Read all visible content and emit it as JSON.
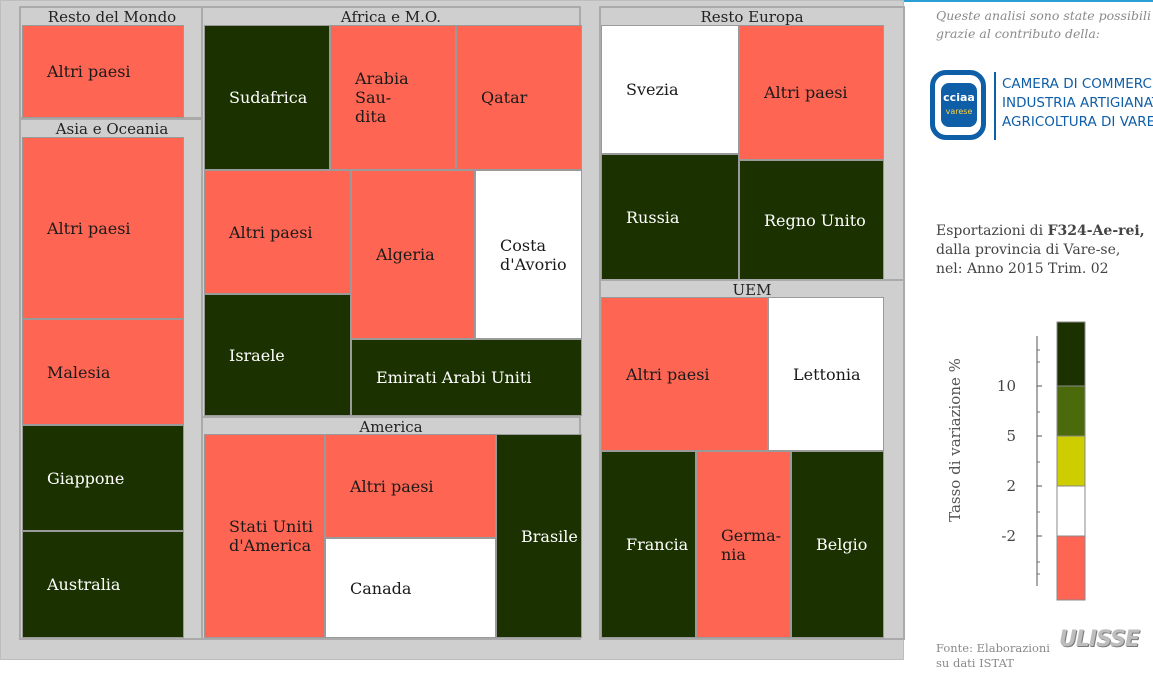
{
  "side_note": "Queste analisi sono state possibili grazie al contributo della:",
  "logo": {
    "mark_line1": "cciaa",
    "mark_line2": "varese",
    "line1": "CAMERA DI COMMERCIO",
    "line2": "INDUSTRIA ARTIGIANATO",
    "line3": "AGRICOLTURA DI VARESE"
  },
  "subtitle": {
    "prefix": "Esportazioni di ",
    "product": "F324-Ae-rei,",
    "middle": " dalla provincia di Vare-se,",
    "period": "nel: Anno 2015 Trim. 02"
  },
  "source": "Fonte: Elaborazioni su dati ISTAT",
  "brand": "ULISSE",
  "colors": {
    "dark_green": "#1b3200",
    "mid_green": "#4a6a0c",
    "yellow": "#cdcd00",
    "white": "#ffffff",
    "red": "#ff6553"
  },
  "chart_data": {
    "type": "treemap",
    "title": "",
    "legend": {
      "title": "Tasso di variazione %",
      "position": "right",
      "breaks": [
        "10",
        "5",
        "2",
        "-2"
      ],
      "bins": [
        {
          "range": "> 10",
          "color": "#1b3200"
        },
        {
          "range": "5 – 10",
          "color": "#4a6a0c"
        },
        {
          "range": "2 – 5",
          "color": "#cdcd00"
        },
        {
          "range": "-2 – 2",
          "color": "#ffffff"
        },
        {
          "range": "< -2",
          "color": "#ff6553"
        }
      ]
    },
    "groups": [
      {
        "name": "Resto del Mondo",
        "items": [
          {
            "name": "Altri paesi",
            "class": "< -2"
          }
        ]
      },
      {
        "name": "Asia e Oceania",
        "items": [
          {
            "name": "Altri paesi",
            "class": "< -2"
          },
          {
            "name": "Malesia",
            "class": "< -2"
          },
          {
            "name": "Giappone",
            "class": "> 10"
          },
          {
            "name": "Australia",
            "class": "> 10"
          }
        ]
      },
      {
        "name": "Africa e M.O.",
        "items": [
          {
            "name": "Sudafrica",
            "class": "> 10"
          },
          {
            "name": "Arabia Sau-dita",
            "class": "< -2"
          },
          {
            "name": "Qatar",
            "class": "< -2"
          },
          {
            "name": "Altri paesi",
            "class": "< -2"
          },
          {
            "name": "Algeria",
            "class": "< -2"
          },
          {
            "name": "Costa d'Avorio",
            "class": "-2 – 2"
          },
          {
            "name": "Israele",
            "class": "> 10"
          },
          {
            "name": "Emirati Arabi Uniti",
            "class": "> 10"
          }
        ]
      },
      {
        "name": "America",
        "items": [
          {
            "name": "Stati Uniti d'America",
            "class": "< -2"
          },
          {
            "name": "Altri paesi",
            "class": "< -2"
          },
          {
            "name": "Canada",
            "class": "-2 – 2"
          },
          {
            "name": "Brasile",
            "class": "> 10"
          }
        ]
      },
      {
        "name": "Resto Europa",
        "items": [
          {
            "name": "Svezia",
            "class": "-2 – 2"
          },
          {
            "name": "Altri paesi",
            "class": "< -2"
          },
          {
            "name": "Russia",
            "class": "> 10"
          },
          {
            "name": "Regno Unito",
            "class": "> 10"
          }
        ]
      },
      {
        "name": "UEM",
        "items": [
          {
            "name": "Altri paesi",
            "class": "< -2"
          },
          {
            "name": "Lettonia",
            "class": "-2 – 2"
          },
          {
            "name": "Francia",
            "class": "> 10"
          },
          {
            "name": "Germa-nia",
            "class": "< -2"
          },
          {
            "name": "Belgio",
            "class": "> 10"
          }
        ]
      }
    ]
  }
}
